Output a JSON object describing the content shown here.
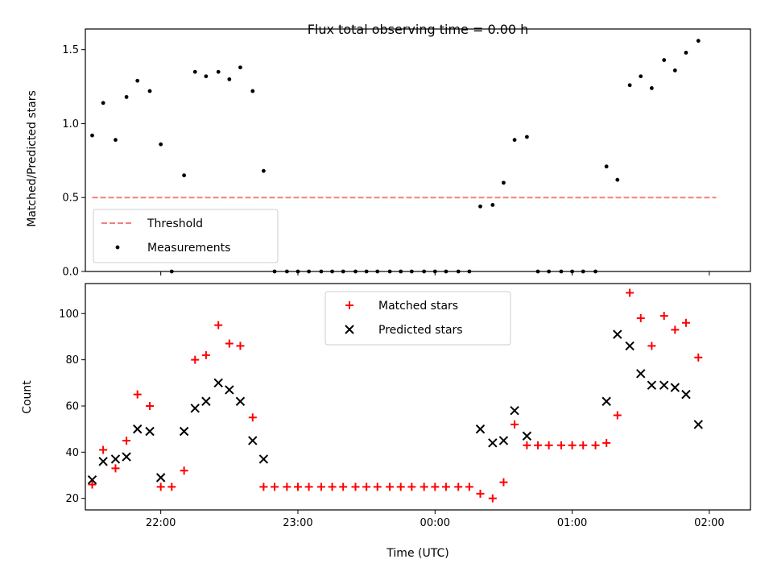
{
  "chart_data": [
    {
      "type": "scatter",
      "title": "Flux total observing time = 0.00 h",
      "xlabel": "",
      "ylabel": "Matched/Predicted stars",
      "xlim": [
        21.45,
        26.3
      ],
      "ylim": [
        0,
        1.64
      ],
      "yticks": [
        0.0,
        0.5,
        1.0,
        1.5
      ],
      "ytick_labels": [
        "0.0",
        "0.5",
        "1.0",
        "1.5"
      ],
      "xticks": [
        22,
        23,
        24,
        25,
        26
      ],
      "legend": {
        "placement": "lower-left",
        "entries": [
          {
            "label": "Threshold",
            "color": "#f08080",
            "marker": "dashed-line"
          },
          {
            "label": "Measurements",
            "color": "#000000",
            "marker": "dot"
          }
        ]
      },
      "series": [
        {
          "name": "Threshold",
          "kind": "line",
          "color": "#f08080",
          "x": [
            21.5,
            26.05
          ],
          "y": [
            0.5,
            0.5
          ]
        },
        {
          "name": "Measurements",
          "kind": "scatter",
          "color": "#000000",
          "x": [
            21.5,
            21.58,
            21.67,
            21.75,
            21.83,
            21.92,
            22.0,
            22.08,
            22.17,
            22.25,
            22.33,
            22.42,
            22.5,
            22.58,
            22.67,
            22.75,
            22.83,
            22.92,
            23.0,
            23.08,
            23.17,
            23.25,
            23.33,
            23.42,
            23.5,
            23.58,
            23.67,
            23.75,
            23.83,
            23.92,
            24.0,
            24.08,
            24.17,
            24.25,
            24.33,
            24.42,
            24.5,
            24.58,
            24.67,
            24.75,
            24.83,
            24.92,
            25.0,
            25.08,
            25.17,
            25.25,
            25.33,
            25.42,
            25.5,
            25.58,
            25.67,
            25.75,
            25.83,
            25.92
          ],
          "y": [
            0.92,
            1.14,
            0.89,
            1.18,
            1.29,
            1.22,
            0.86,
            0.0,
            0.65,
            1.35,
            1.32,
            1.35,
            1.3,
            1.38,
            1.22,
            0.68,
            0.0,
            0.0,
            0.0,
            0.0,
            0.0,
            0.0,
            0.0,
            0.0,
            0.0,
            0.0,
            0.0,
            0.0,
            0.0,
            0.0,
            0.0,
            0.0,
            0.0,
            0.0,
            0.44,
            0.45,
            0.6,
            0.89,
            0.91,
            0.0,
            0.0,
            0.0,
            0.0,
            0.0,
            0.0,
            0.71,
            0.62,
            1.26,
            1.32,
            1.24,
            1.43,
            1.36,
            1.48,
            1.56
          ]
        }
      ]
    },
    {
      "type": "scatter",
      "title": "",
      "xlabel": "Time (UTC)",
      "ylabel": "Count",
      "xlim": [
        21.45,
        26.3
      ],
      "ylim": [
        15,
        113
      ],
      "yticks": [
        20,
        40,
        60,
        80,
        100
      ],
      "ytick_labels": [
        "20",
        "40",
        "60",
        "80",
        "100"
      ],
      "xticks": [
        22,
        23,
        24,
        25,
        26
      ],
      "xtick_labels": [
        "22:00",
        "23:00",
        "00:00",
        "01:00",
        "02:00"
      ],
      "legend": {
        "placement": "upper-center",
        "entries": [
          {
            "label": "Matched stars",
            "color": "#ff0000",
            "marker": "plus"
          },
          {
            "label": "Predicted stars",
            "color": "#000000",
            "marker": "x"
          }
        ]
      },
      "series": [
        {
          "name": "Matched stars",
          "kind": "scatter",
          "color": "#ff0000",
          "marker": "plus",
          "x": [
            21.5,
            21.58,
            21.67,
            21.75,
            21.83,
            21.92,
            22.0,
            22.08,
            22.17,
            22.25,
            22.33,
            22.42,
            22.5,
            22.58,
            22.67,
            22.75,
            22.83,
            22.92,
            23.0,
            23.08,
            23.17,
            23.25,
            23.33,
            23.42,
            23.5,
            23.58,
            23.67,
            23.75,
            23.83,
            23.92,
            24.0,
            24.08,
            24.17,
            24.25,
            24.33,
            24.42,
            24.5,
            24.58,
            24.67,
            24.75,
            24.83,
            24.92,
            25.0,
            25.08,
            25.17,
            25.25,
            25.33,
            25.42,
            25.5,
            25.58,
            25.67,
            25.75,
            25.83,
            25.92
          ],
          "y": [
            26,
            41,
            33,
            45,
            65,
            60,
            25,
            25,
            32,
            80,
            82,
            95,
            87,
            86,
            55,
            25,
            25,
            25,
            25,
            25,
            25,
            25,
            25,
            25,
            25,
            25,
            25,
            25,
            25,
            25,
            25,
            25,
            25,
            25,
            22,
            20,
            27,
            52,
            43,
            43,
            43,
            43,
            43,
            43,
            43,
            44,
            56,
            109,
            98,
            86,
            99,
            93,
            96,
            81
          ]
        },
        {
          "name": "Predicted stars",
          "kind": "scatter",
          "color": "#000000",
          "marker": "x",
          "x": [
            21.5,
            21.58,
            21.67,
            21.75,
            21.83,
            21.92,
            22.0,
            22.17,
            22.25,
            22.33,
            22.42,
            22.5,
            22.58,
            22.67,
            22.75,
            24.33,
            24.42,
            24.5,
            24.58,
            24.67,
            25.25,
            25.33,
            25.42,
            25.5,
            25.58,
            25.67,
            25.75,
            25.83,
            25.92
          ],
          "y": [
            28,
            36,
            37,
            38,
            50,
            49,
            29,
            49,
            59,
            62,
            70,
            67,
            62,
            45,
            37,
            50,
            44,
            45,
            58,
            47,
            62,
            91,
            86,
            74,
            69,
            69,
            68,
            65,
            52
          ]
        }
      ]
    }
  ]
}
